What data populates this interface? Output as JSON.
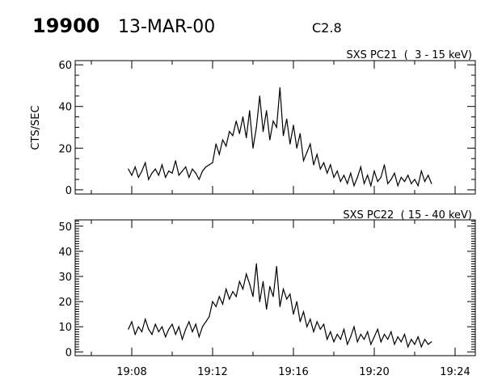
{
  "header": {
    "event_number": "19900",
    "date": "13-MAR-00",
    "flare_class": "C2.8"
  },
  "chart_data": [
    {
      "type": "line",
      "title": "SXS PC21  (  3 - 15 keV)",
      "ylabel": "CTS/SEC",
      "xlabel": "",
      "xlim": [
        "19:05:12",
        "19:25:00"
      ],
      "ylim": [
        -2,
        62
      ],
      "yticks": [
        "0",
        "20",
        "40",
        "60"
      ],
      "xticks": [],
      "color": "#000000",
      "grid": false,
      "x": [
        "19:07:50",
        "19:08:00",
        "19:08:10",
        "19:08:20",
        "19:08:30",
        "19:08:40",
        "19:08:50",
        "19:09:00",
        "19:09:10",
        "19:09:20",
        "19:09:30",
        "19:09:40",
        "19:09:50",
        "19:10:00",
        "19:10:10",
        "19:10:20",
        "19:10:30",
        "19:10:40",
        "19:10:50",
        "19:11:00",
        "19:11:10",
        "19:11:20",
        "19:11:30",
        "19:11:40",
        "19:11:50",
        "19:12:00",
        "19:12:10",
        "19:12:20",
        "19:12:30",
        "19:12:40",
        "19:12:50",
        "19:13:00",
        "19:13:10",
        "19:13:20",
        "19:13:30",
        "19:13:40",
        "19:13:50",
        "19:14:00",
        "19:14:10",
        "19:14:20",
        "19:14:30",
        "19:14:40",
        "19:14:50",
        "19:15:00",
        "19:15:10",
        "19:15:20",
        "19:15:30",
        "19:15:40",
        "19:15:50",
        "19:16:00",
        "19:16:10",
        "19:16:20",
        "19:16:30",
        "19:16:40",
        "19:16:50",
        "19:17:00",
        "19:17:10",
        "19:17:20",
        "19:17:30",
        "19:17:40",
        "19:17:50",
        "19:18:00",
        "19:18:10",
        "19:18:20",
        "19:18:30",
        "19:18:40",
        "19:18:50",
        "19:19:00",
        "19:19:10",
        "19:19:20",
        "19:19:30",
        "19:19:40",
        "19:19:50",
        "19:20:00",
        "19:20:10",
        "19:20:20",
        "19:20:30",
        "19:20:40",
        "19:20:50",
        "19:21:00",
        "19:21:10",
        "19:21:20",
        "19:21:30",
        "19:21:40",
        "19:21:50",
        "19:22:00",
        "19:22:10",
        "19:22:20",
        "19:22:30",
        "19:22:40",
        "19:22:50"
      ],
      "values": [
        10,
        7,
        11,
        6,
        9,
        13,
        5,
        8,
        10,
        7,
        12,
        6,
        9,
        8,
        14,
        7,
        9,
        11,
        6,
        10,
        8,
        5,
        9,
        11,
        12,
        13,
        22,
        17,
        24,
        21,
        28,
        26,
        33,
        27,
        35,
        25,
        38,
        20,
        30,
        45,
        28,
        38,
        24,
        33,
        30,
        49,
        26,
        34,
        22,
        31,
        20,
        27,
        14,
        18,
        22,
        12,
        17,
        10,
        13,
        8,
        12,
        6,
        9,
        4,
        7,
        3,
        8,
        2,
        6,
        11,
        3,
        7,
        2,
        9,
        4,
        6,
        12,
        3,
        5,
        8,
        2,
        6,
        4,
        7,
        3,
        5,
        2,
        9,
        4,
        7,
        3
      ]
    },
    {
      "type": "line",
      "title": "SXS PC22  ( 15 - 40 keV)",
      "ylabel": "",
      "xlabel": "",
      "xlim": [
        "19:05:12",
        "19:25:00"
      ],
      "ylim": [
        -1.5,
        52.5
      ],
      "yticks": [
        "0",
        "10",
        "20",
        "30",
        "40",
        "50"
      ],
      "xticks": [
        "19:08",
        "19:12",
        "19:16",
        "19:20",
        "19:24"
      ],
      "color": "#000000",
      "grid": false,
      "x": [
        "19:07:50",
        "19:08:00",
        "19:08:10",
        "19:08:20",
        "19:08:30",
        "19:08:40",
        "19:08:50",
        "19:09:00",
        "19:09:10",
        "19:09:20",
        "19:09:30",
        "19:09:40",
        "19:09:50",
        "19:10:00",
        "19:10:10",
        "19:10:20",
        "19:10:30",
        "19:10:40",
        "19:10:50",
        "19:11:00",
        "19:11:10",
        "19:11:20",
        "19:11:30",
        "19:11:40",
        "19:11:50",
        "19:12:00",
        "19:12:10",
        "19:12:20",
        "19:12:30",
        "19:12:40",
        "19:12:50",
        "19:13:00",
        "19:13:10",
        "19:13:20",
        "19:13:30",
        "19:13:40",
        "19:13:50",
        "19:14:00",
        "19:14:10",
        "19:14:20",
        "19:14:30",
        "19:14:40",
        "19:14:50",
        "19:15:00",
        "19:15:10",
        "19:15:20",
        "19:15:30",
        "19:15:40",
        "19:15:50",
        "19:16:00",
        "19:16:10",
        "19:16:20",
        "19:16:30",
        "19:16:40",
        "19:16:50",
        "19:17:00",
        "19:17:10",
        "19:17:20",
        "19:17:30",
        "19:17:40",
        "19:17:50",
        "19:18:00",
        "19:18:10",
        "19:18:20",
        "19:18:30",
        "19:18:40",
        "19:18:50",
        "19:19:00",
        "19:19:10",
        "19:19:20",
        "19:19:30",
        "19:19:40",
        "19:19:50",
        "19:20:00",
        "19:20:10",
        "19:20:20",
        "19:20:30",
        "19:20:40",
        "19:20:50",
        "19:21:00",
        "19:21:10",
        "19:21:20",
        "19:21:30",
        "19:21:40",
        "19:21:50",
        "19:22:00",
        "19:22:10",
        "19:22:20",
        "19:22:30",
        "19:22:40",
        "19:22:50"
      ],
      "values": [
        9,
        12,
        7,
        10,
        8,
        13,
        9,
        7,
        11,
        8,
        10,
        6,
        9,
        11,
        7,
        10,
        5,
        9,
        12,
        8,
        11,
        6,
        10,
        12,
        14,
        20,
        18,
        22,
        19,
        25,
        21,
        24,
        22,
        28,
        25,
        31,
        27,
        22,
        35,
        20,
        28,
        17,
        26,
        22,
        34,
        18,
        25,
        21,
        23,
        15,
        20,
        12,
        16,
        10,
        13,
        8,
        12,
        9,
        11,
        5,
        8,
        4,
        7,
        5,
        9,
        3,
        6,
        10,
        4,
        7,
        5,
        8,
        3,
        6,
        9,
        4,
        7,
        5,
        8,
        3,
        6,
        4,
        7,
        2,
        5,
        3,
        6,
        2,
        5,
        3,
        4
      ]
    }
  ]
}
